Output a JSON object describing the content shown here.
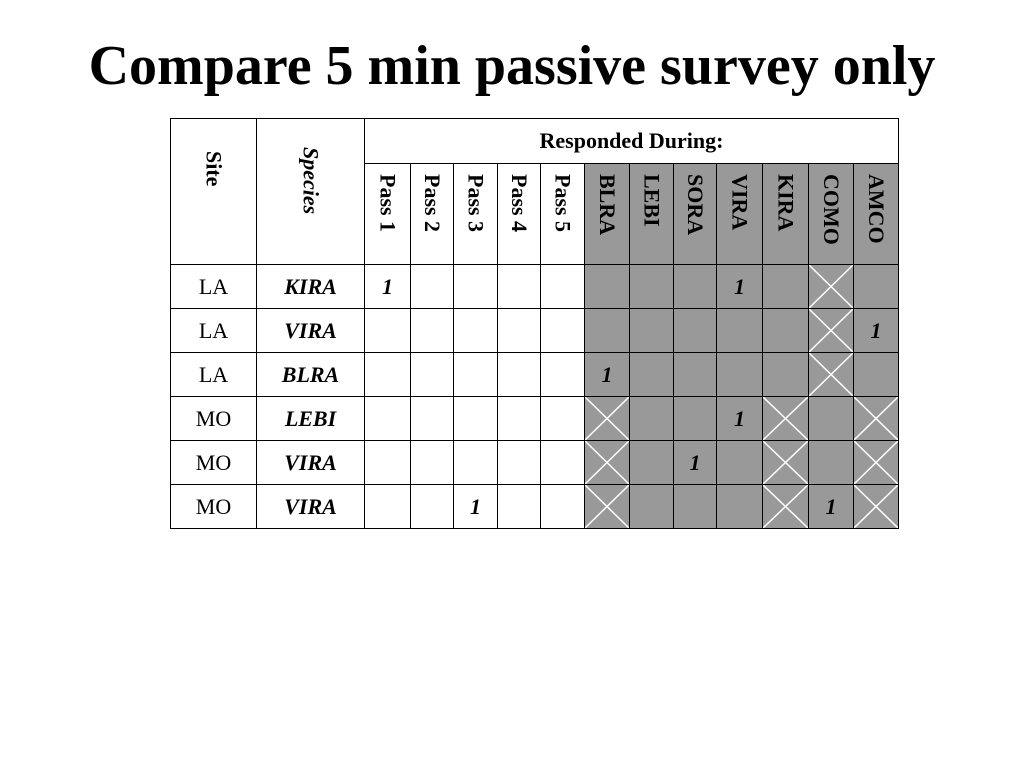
{
  "slide": {
    "title": "Compare 5 min passive survey only"
  },
  "table": {
    "site_header": "Site",
    "species_header": "Species",
    "responded_header": "Responded During:",
    "columns": [
      "Pass 1",
      "Pass 2",
      "Pass 3",
      "Pass 4",
      "Pass 5",
      "BLRA",
      "LEBI",
      "SORA",
      "VIRA",
      "KIRA",
      "COMO",
      "AMCO"
    ],
    "shaded_color": "#999999",
    "rows": [
      {
        "site": "LA",
        "species": "KIRA",
        "cells": [
          "1",
          "",
          "",
          "",
          "",
          "",
          "",
          "",
          "1",
          "",
          "x",
          ""
        ]
      },
      {
        "site": "LA",
        "species": "VIRA",
        "cells": [
          "",
          "",
          "",
          "",
          "",
          "",
          "",
          "",
          "",
          "",
          "x",
          "1"
        ]
      },
      {
        "site": "LA",
        "species": "BLRA",
        "cells": [
          "",
          "",
          "",
          "",
          "",
          "1",
          "",
          "",
          "",
          "",
          "x",
          ""
        ]
      },
      {
        "site": "MO",
        "species": "LEBI",
        "cells": [
          "",
          "",
          "",
          "",
          "",
          "x",
          "",
          "",
          "1",
          "x",
          "",
          "x"
        ]
      },
      {
        "site": "MO",
        "species": "VIRA",
        "cells": [
          "",
          "",
          "",
          "",
          "",
          "x",
          "",
          "1",
          "",
          "x",
          "",
          "x"
        ]
      },
      {
        "site": "MO",
        "species": "VIRA",
        "cells": [
          "",
          "",
          "1",
          "",
          "",
          "x",
          "",
          "",
          "",
          "x",
          "1",
          "x"
        ]
      }
    ]
  }
}
